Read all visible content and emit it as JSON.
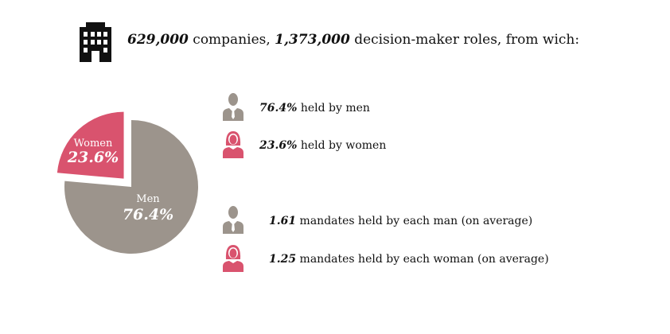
{
  "header": {
    "icon": "building-icon",
    "companies": "629,000",
    "companies_text": " companies, ",
    "roles": "1,373,000",
    "roles_text": " decision-maker roles, from wich:"
  },
  "stats": [
    {
      "icon": "man-icon",
      "value": "76.4%",
      "text": " held by men"
    },
    {
      "icon": "woman-icon",
      "value": "23.6%",
      "text": " held by women"
    },
    {
      "icon": "man-icon",
      "value": "1.61",
      "text": " mandates held by each man (on average)"
    },
    {
      "icon": "woman-icon",
      "value": "1.25",
      "text": " mandates held by each woman (on average)"
    }
  ],
  "colors": {
    "men": "#9c948c",
    "women": "#d9536e"
  },
  "chart_data": {
    "type": "pie",
    "slices": [
      {
        "label": "Men",
        "value": 76.4,
        "display": "76.4%",
        "color": "#9c948c"
      },
      {
        "label": "Women",
        "value": 23.6,
        "display": "23.6%",
        "color": "#d9536e",
        "exploded": true
      }
    ]
  }
}
